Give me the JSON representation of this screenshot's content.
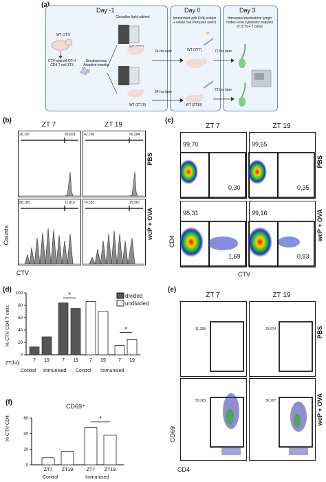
{
  "panel_a": {
    "letter": "(a)",
    "day_minus1": "Day -1",
    "day0": "Day 0",
    "day3": "Day 3",
    "circadian": "Circadian light cabinet",
    "immunised": "Immunised with OVA protein + whole cell Pertussis (wcP)",
    "harvested": "Harvested mediastinal lymph nodes Flow cytometry analysis of (CTV+ T cells)",
    "wt_ot2": "WT OT-II",
    "ctv_cells": "CTV-stained OT-II CD4 T cell ZT3",
    "simultaneous": "Simultaneous Adoptive transfer",
    "wt_zt7": "WT (ZT7)",
    "wt_zt19": "WT (ZT19)",
    "wt_zt7_b": "WT (ZT7)",
    "wt_zt19_b": "WT (ZT19)",
    "later24a": "24 hrs later",
    "later24b": "24 hrs later",
    "later72a": "72 hrs later",
    "later72b": "72 hrs later"
  },
  "panel_b": {
    "letter": "(b)",
    "zt7": "ZT 7",
    "zt19": "ZT 19",
    "pbs": "PBS",
    "wcp": "wcP + OVA",
    "ylabel": "Counts",
    "xlabel": "CTV",
    "n1a": "16,197",
    "n1b": "83,603",
    "n2a": "43,706",
    "n2b": "56,294",
    "n3a": "88,185",
    "n3b": "11,815",
    "n4a": "74,333",
    "n4b": "25,667"
  },
  "panel_c": {
    "letter": "(c)",
    "zt7": "ZT 7",
    "zt19": "ZT 19",
    "pbs": "PBS",
    "wcp": "wcP + OVA",
    "ylabel": "CD4",
    "xlabel": "CTV",
    "q1a": "99,70",
    "q1b": "0,30",
    "q2a": "99,65",
    "q2b": "0,35",
    "q3a": "98,31",
    "q3b": "1,69",
    "q4a": "99,16",
    "q4b": "0,83"
  },
  "panel_d": {
    "letter": "(d)",
    "ylabel": "% CTV CD4 T cells",
    "legend_divided": "divided",
    "legend_undivided": "undivided",
    "zt_label": "ZT(hr):",
    "ticks": [
      "0",
      "20",
      "40",
      "60",
      "80",
      "100"
    ],
    "x_ticks": [
      "7",
      "19",
      "7",
      "19",
      "7",
      "19",
      "7",
      "19"
    ],
    "groups": [
      "Control",
      "Immunised",
      "Control",
      "Immunised"
    ],
    "star": "*"
  },
  "panel_e": {
    "letter": "(e)",
    "zt7": "ZT 7",
    "zt19": "ZT 19",
    "pbs": "PBS",
    "wcp": "wcP + OVA",
    "ylabel": "CD69",
    "xlabel": "CD4",
    "e1": "11,268",
    "e2": "25,974",
    "e3": "50,263",
    "e4": "36,207"
  },
  "panel_f": {
    "letter": "(f)",
    "title": "CD69⁺",
    "ylabel": "% CTV CD4",
    "ticks": [
      "0",
      "20",
      "40",
      "60"
    ],
    "x_ticks": [
      "ZT7",
      "ZT19",
      "ZT7",
      "ZT19"
    ],
    "groups": [
      "Control",
      "Immunised"
    ],
    "star": "*"
  },
  "chart_data": [
    {
      "type": "bar",
      "categories": [
        "Control ZT7",
        "Control ZT19",
        "Immunised ZT7",
        "Immunised ZT19"
      ],
      "series": [
        {
          "name": "divided",
          "values": [
            13,
            29,
            84,
            75
          ]
        },
        {
          "name": "undivided",
          "values": [
            86,
            70,
            15,
            25
          ]
        }
      ],
      "ylim": [
        0,
        100
      ],
      "ylabel": "% CTV CD4 T cells"
    },
    {
      "type": "bar",
      "title": "CD69⁺",
      "categories": [
        "Control ZT7",
        "Control ZT19",
        "Immunised ZT7",
        "Immunised ZT19"
      ],
      "values": [
        9,
        17,
        48,
        38
      ],
      "ylim": [
        0,
        60
      ],
      "ylabel": "% CTV CD4"
    }
  ]
}
